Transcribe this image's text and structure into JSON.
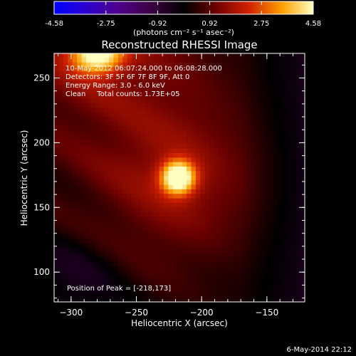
{
  "chart_data": {
    "type": "heatmap",
    "title": "Reconstructed RHESSI Image",
    "xlabel": "Heliocentric X (arcsec)",
    "ylabel": "Heliocentric Y (arcsec)",
    "xlim": [
      -313,
      -121
    ],
    "ylim": [
      77,
      269
    ],
    "x_ticks": [
      -300,
      -250,
      -200,
      -150
    ],
    "y_ticks": [
      100,
      150,
      200,
      250
    ],
    "colorbar": {
      "ticks": [
        -4.58,
        -2.75,
        -0.92,
        0.92,
        2.75,
        4.58
      ],
      "tick_labels": [
        "-4.58",
        "-2.75",
        "-0.92",
        "0.92",
        "2.75",
        "4.58"
      ],
      "range": [
        -4.58,
        4.58
      ],
      "label": "(photons cm⁻² s⁻¹ asec⁻²)"
    },
    "sources": [
      {
        "x": -218,
        "y": 173,
        "peak": 4.58
      },
      {
        "x": -280,
        "y": 268,
        "peak": 4.0
      }
    ],
    "annotations": [
      "10-May-2012 06:07:24.000 to 06:08:28.000",
      "Detectors: 3F 5F 6F 7F 8F 9F, Att 0",
      "Energy Range: 3.0 - 6.0 keV",
      "Clean     Total counts: 1.73E+05"
    ],
    "peak_label": "Position of Peak = [-218,173]"
  },
  "footer": {
    "date": "6-May-2014 22:12"
  }
}
